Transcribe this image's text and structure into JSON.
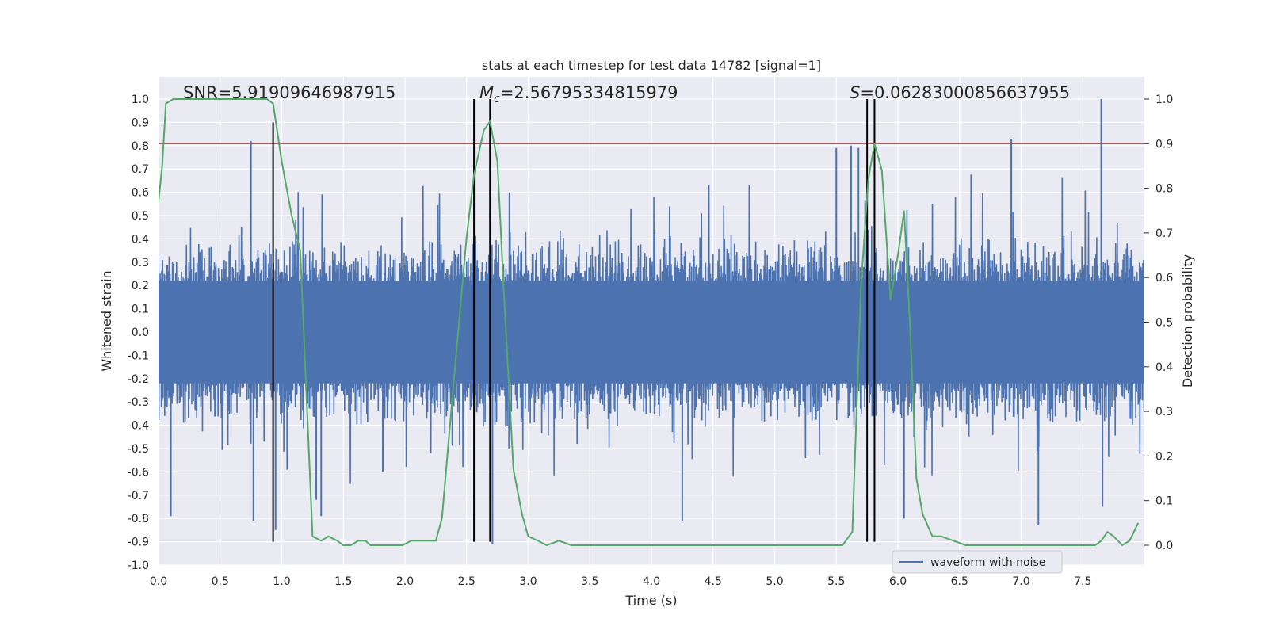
{
  "chart_data": {
    "type": "line",
    "title": "stats at each timestep for test data 14782 [signal=1]",
    "xlabel": "Time (s)",
    "ylabel_left": "Whitened strain",
    "ylabel_right": "Detection probability",
    "xlim": [
      0.0,
      8.0
    ],
    "ylim_left": [
      -1.0,
      1.0
    ],
    "ylim_right": [
      -0.0467,
      1.0362
    ],
    "x_ticks": [
      0.0,
      0.5,
      1.0,
      1.5,
      2.0,
      2.5,
      3.0,
      3.5,
      4.0,
      4.5,
      5.0,
      5.5,
      6.0,
      6.5,
      7.0,
      7.5
    ],
    "x_tick_labels": [
      "0.0",
      "0.5",
      "1.0",
      "1.5",
      "2.0",
      "2.5",
      "3.0",
      "3.5",
      "4.0",
      "4.5",
      "5.0",
      "5.5",
      "6.0",
      "6.5",
      "7.0",
      "7.5"
    ],
    "y_left_ticks": [
      1.0,
      0.9,
      0.8,
      0.7,
      0.6,
      0.5,
      0.4,
      0.3,
      0.2,
      0.1,
      0.0,
      -0.1,
      -0.2,
      -0.3,
      -0.4,
      -0.5,
      -0.6,
      -0.7,
      -0.8,
      -0.9,
      -1.0
    ],
    "y_left_tick_labels": [
      "1.0",
      "0.9",
      "0.8",
      "0.7",
      "0.6",
      "0.5",
      "0.4",
      "0.3",
      "0.2",
      "0.1",
      "0.0",
      "-0.1",
      "-0.2",
      "-0.3",
      "-0.4",
      "-0.5",
      "-0.6",
      "-0.7",
      "-0.8",
      "-0.9",
      "-1.0"
    ],
    "y_right_ticks": [
      1.0,
      0.9,
      0.8,
      0.7,
      0.6,
      0.5,
      0.4,
      0.3,
      0.2,
      0.1,
      0.0
    ],
    "y_right_tick_labels": [
      "1.0",
      "0.9",
      "0.8",
      "0.7",
      "0.6",
      "0.5",
      "0.4",
      "0.3",
      "0.2",
      "0.1",
      "0.0"
    ],
    "annotations": {
      "snr": "SNR=5.91909646987915",
      "mc_symbol": "M",
      "mc_subscript": "c",
      "mc_value": "=2.56795334815979",
      "s_symbol": "S",
      "s_value": "=0.06283000856637955"
    },
    "legend": {
      "label": "waveform with noise",
      "placement": "lower-right"
    },
    "threshold": {
      "value_right_axis": 0.9,
      "color": "#c44e52"
    },
    "vertical_markers": [
      {
        "x": 0.93,
        "y_from": -0.9,
        "y_to": 0.9
      },
      {
        "x": 2.56,
        "y_from": -0.9,
        "y_to": 1.0
      },
      {
        "x": 2.69,
        "y_from": -0.9,
        "y_to": 1.0
      },
      {
        "x": 5.75,
        "y_from": -0.9,
        "y_to": 1.0
      },
      {
        "x": 5.81,
        "y_from": -0.9,
        "y_to": 1.0
      }
    ],
    "series": [
      {
        "name": "waveform with noise",
        "color": "#4c72b0",
        "axis": "left",
        "description_of_values": "noisy whitened strain, dense oscillation approx within -0.6..0.6 with occasional spikes",
        "core_amplitude": 0.42,
        "spikes": [
          {
            "x": 0.75,
            "y": 0.82
          },
          {
            "x": 0.77,
            "y": -0.81
          },
          {
            "x": 0.95,
            "y": -0.85
          },
          {
            "x": 1.28,
            "y": -0.72
          },
          {
            "x": 1.32,
            "y": -0.79
          },
          {
            "x": 2.69,
            "y": 0.9
          },
          {
            "x": 2.71,
            "y": -0.91
          },
          {
            "x": 4.25,
            "y": -0.81
          },
          {
            "x": 5.62,
            "y": 0.8
          },
          {
            "x": 5.68,
            "y": 0.79
          },
          {
            "x": 6.05,
            "y": -0.8
          },
          {
            "x": 6.92,
            "y": 0.83
          },
          {
            "x": 7.14,
            "y": -0.83
          },
          {
            "x": 7.65,
            "y": 1.0
          },
          {
            "x": 7.66,
            "y": -0.75
          },
          {
            "x": 0.1,
            "y": -0.79
          },
          {
            "x": 1.82,
            "y": -0.6
          },
          {
            "x": 5.5,
            "y": 0.79
          }
        ]
      },
      {
        "name": "",
        "color": "#55a868",
        "axis": "right",
        "x": [
          0.0,
          0.03,
          0.06,
          0.12,
          0.2,
          0.4,
          0.6,
          0.8,
          0.88,
          0.93,
          1.0,
          1.08,
          1.15,
          1.25,
          1.32,
          1.38,
          1.45,
          1.5,
          1.56,
          1.62,
          1.68,
          1.72,
          1.78,
          1.85,
          1.92,
          1.98,
          2.05,
          2.12,
          2.18,
          2.25,
          2.3,
          2.4,
          2.5,
          2.56,
          2.64,
          2.69,
          2.75,
          2.8,
          2.88,
          2.95,
          3.0,
          3.08,
          3.15,
          3.25,
          3.35,
          3.45,
          3.55,
          3.7,
          3.85,
          4.0,
          4.15,
          4.25,
          4.35,
          4.5,
          4.65,
          4.8,
          4.95,
          5.1,
          5.25,
          5.35,
          5.45,
          5.55,
          5.63,
          5.7,
          5.76,
          5.81,
          5.87,
          5.94,
          6.0,
          6.05,
          6.1,
          6.15,
          6.2,
          6.28,
          6.35,
          6.45,
          6.55,
          6.7,
          6.85,
          7.0,
          7.15,
          7.3,
          7.45,
          7.6,
          7.65,
          7.7,
          7.75,
          7.82,
          7.88,
          7.95
        ],
        "y": [
          0.77,
          0.85,
          0.99,
          1.0,
          1.0,
          1.0,
          1.0,
          1.0,
          1.0,
          0.99,
          0.86,
          0.74,
          0.66,
          0.02,
          0.01,
          0.02,
          0.01,
          0.0,
          0.0,
          0.01,
          0.01,
          0.0,
          0.0,
          0.0,
          0.0,
          0.0,
          0.01,
          0.01,
          0.01,
          0.01,
          0.06,
          0.38,
          0.69,
          0.83,
          0.93,
          0.95,
          0.86,
          0.58,
          0.17,
          0.07,
          0.02,
          0.01,
          0.0,
          0.01,
          0.0,
          0.0,
          0.0,
          0.0,
          0.0,
          0.0,
          0.0,
          0.0,
          0.0,
          0.0,
          0.0,
          0.0,
          0.0,
          0.0,
          0.0,
          0.0,
          0.0,
          0.0,
          0.03,
          0.58,
          0.82,
          0.9,
          0.84,
          0.55,
          0.65,
          0.75,
          0.48,
          0.15,
          0.07,
          0.02,
          0.02,
          0.01,
          0.0,
          0.0,
          0.0,
          0.0,
          0.0,
          0.0,
          0.0,
          0.0,
          0.01,
          0.03,
          0.02,
          0.0,
          0.01,
          0.05
        ]
      }
    ],
    "colors": {
      "background": "#eaeaf2",
      "grid": "#ffffff",
      "marker_lines": "#000000"
    }
  }
}
